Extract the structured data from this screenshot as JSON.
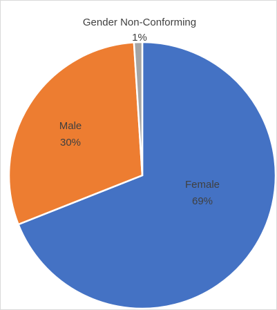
{
  "chart_data": {
    "type": "pie",
    "title": "",
    "slices": [
      {
        "name": "Female",
        "value": 69,
        "label": "69%",
        "color": "#4472c4"
      },
      {
        "name": "Male",
        "value": 30,
        "label": "30%",
        "color": "#ed7d31"
      },
      {
        "name": "Gender Non-Conforming",
        "value": 1,
        "label": "1%",
        "color": "#a5a5a5"
      }
    ],
    "label_color": "#404040",
    "start_angle_deg": 0,
    "direction": "clockwise",
    "legend": "none",
    "data_labels": "category name and percentage"
  }
}
